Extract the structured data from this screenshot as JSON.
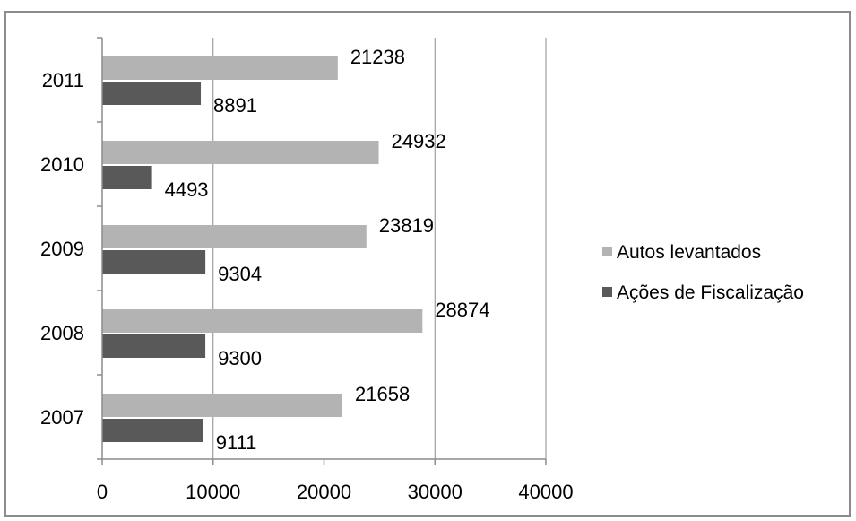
{
  "chart_data": {
    "type": "bar",
    "orientation": "horizontal",
    "categories": [
      "2007",
      "2008",
      "2009",
      "2010",
      "2011"
    ],
    "series": [
      {
        "name": "Autos levantados",
        "color": "#b3b3b3",
        "values": [
          21658,
          28874,
          23819,
          24932,
          21238
        ]
      },
      {
        "name": "Ações de Fiscalização",
        "color": "#595959",
        "values": [
          9111,
          9300,
          9304,
          4493,
          8891
        ]
      }
    ],
    "xlim": [
      0,
      40000
    ],
    "x_ticks": [
      0,
      10000,
      20000,
      30000,
      40000
    ],
    "x_tick_labels": [
      "0",
      "10000",
      "20000",
      "30000",
      "40000"
    ],
    "grid": true,
    "legend_position": "right",
    "data_labels": true
  }
}
